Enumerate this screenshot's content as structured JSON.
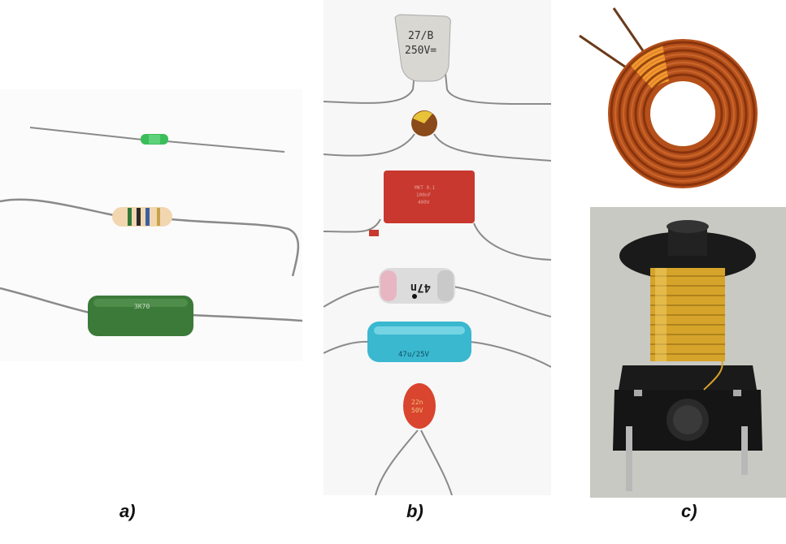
{
  "captions": {
    "a": "a)",
    "b": "b)",
    "c": "c)"
  },
  "component_labels": {
    "green_resistor": "3K70",
    "film_capacitor": [
      "27/B",
      "250V="
    ],
    "red_capacitor": [
      "MKT 0.1",
      "100nF",
      "400V"
    ],
    "silver_capacitor": "47n",
    "blue_capacitor": "47u/25V",
    "orange_capacitor": [
      "22n",
      "50V"
    ]
  },
  "colors": {
    "wire": "#8a8a8a",
    "resistor_green": "#3c7a3a",
    "copper": "#b5501a",
    "bobbin": "#1a1a1a",
    "brass": "#d6a42a"
  }
}
